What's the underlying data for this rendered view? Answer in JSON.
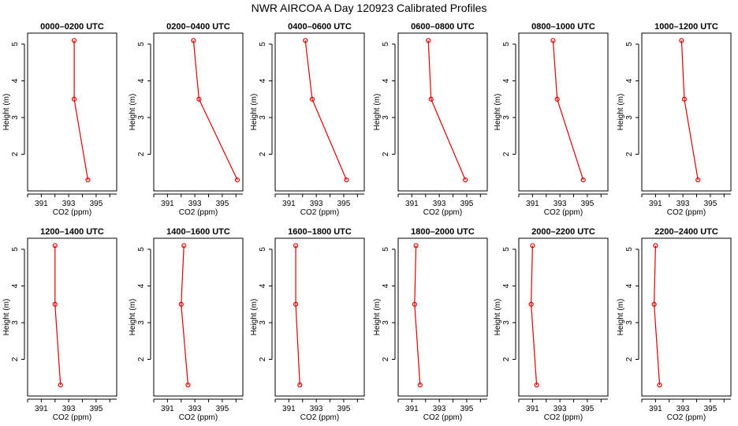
{
  "figure": {
    "title": "NWR AIRCOA A  Day 120923  Calibrated Profiles",
    "line_color": "#dd0000"
  },
  "chart_data": [
    {
      "type": "line",
      "title": "0000–0200 UTC",
      "xlabel": "CO2 (ppm)",
      "ylabel": "Height (m)",
      "xlim": [
        390,
        396.5
      ],
      "ylim": [
        1.0,
        5.3
      ],
      "xticks": [
        391,
        393,
        395
      ],
      "yticks": [
        2,
        3,
        4,
        5
      ],
      "x": [
        393.4,
        393.4,
        394.4
      ],
      "y": [
        5.1,
        3.5,
        1.3
      ]
    },
    {
      "type": "line",
      "title": "0200–0400 UTC",
      "xlabel": "CO2 (ppm)",
      "ylabel": "Height (m)",
      "xlim": [
        390,
        396.5
      ],
      "ylim": [
        1.0,
        5.3
      ],
      "xticks": [
        391,
        393,
        395
      ],
      "yticks": [
        2,
        3,
        4,
        5
      ],
      "x": [
        392.9,
        393.3,
        396.1
      ],
      "y": [
        5.1,
        3.5,
        1.3
      ]
    },
    {
      "type": "line",
      "title": "0400–0600 UTC",
      "xlabel": "CO2 (ppm)",
      "ylabel": "Height (m)",
      "xlim": [
        390,
        396.5
      ],
      "ylim": [
        1.0,
        5.3
      ],
      "xticks": [
        391,
        393,
        395
      ],
      "yticks": [
        2,
        3,
        4,
        5
      ],
      "x": [
        392.2,
        392.7,
        395.2
      ],
      "y": [
        5.1,
        3.5,
        1.3
      ]
    },
    {
      "type": "line",
      "title": "0600–0800 UTC",
      "xlabel": "CO2 (ppm)",
      "ylabel": "Height (m)",
      "xlim": [
        390,
        396.5
      ],
      "ylim": [
        1.0,
        5.3
      ],
      "xticks": [
        391,
        393,
        395
      ],
      "yticks": [
        2,
        3,
        4,
        5
      ],
      "x": [
        392.2,
        392.4,
        394.9
      ],
      "y": [
        5.1,
        3.5,
        1.3
      ]
    },
    {
      "type": "line",
      "title": "0800–1000 UTC",
      "xlabel": "CO2 (ppm)",
      "ylabel": "Height (m)",
      "xlim": [
        390,
        396.5
      ],
      "ylim": [
        1.0,
        5.3
      ],
      "xticks": [
        391,
        393,
        395
      ],
      "yticks": [
        2,
        3,
        4,
        5
      ],
      "x": [
        392.5,
        392.8,
        394.7
      ],
      "y": [
        5.1,
        3.5,
        1.3
      ]
    },
    {
      "type": "line",
      "title": "1000–1200 UTC",
      "xlabel": "CO2 (ppm)",
      "ylabel": "Height (m)",
      "xlim": [
        390,
        396.5
      ],
      "ylim": [
        1.0,
        5.3
      ],
      "xticks": [
        391,
        393,
        395
      ],
      "yticks": [
        2,
        3,
        4,
        5
      ],
      "x": [
        392.9,
        393.1,
        394.1
      ],
      "y": [
        5.1,
        3.5,
        1.3
      ]
    },
    {
      "type": "line",
      "title": "1200–1400 UTC",
      "xlabel": "CO2 (ppm)",
      "ylabel": "Height (m)",
      "xlim": [
        390,
        396.5
      ],
      "ylim": [
        1.0,
        5.3
      ],
      "xticks": [
        391,
        393,
        395
      ],
      "yticks": [
        2,
        3,
        4,
        5
      ],
      "x": [
        392.0,
        392.0,
        392.4
      ],
      "y": [
        5.1,
        3.5,
        1.3
      ]
    },
    {
      "type": "line",
      "title": "1400–1600 UTC",
      "xlabel": "CO2 (ppm)",
      "ylabel": "Height (m)",
      "xlim": [
        390,
        396.5
      ],
      "ylim": [
        1.0,
        5.3
      ],
      "xticks": [
        391,
        393,
        395
      ],
      "yticks": [
        2,
        3,
        4,
        5
      ],
      "x": [
        392.2,
        392.0,
        392.5
      ],
      "y": [
        5.1,
        3.5,
        1.3
      ]
    },
    {
      "type": "line",
      "title": "1600–1800 UTC",
      "xlabel": "CO2 (ppm)",
      "ylabel": "Height (m)",
      "xlim": [
        390,
        396.5
      ],
      "ylim": [
        1.0,
        5.3
      ],
      "xticks": [
        391,
        393,
        395
      ],
      "yticks": [
        2,
        3,
        4,
        5
      ],
      "x": [
        391.5,
        391.5,
        391.8
      ],
      "y": [
        5.1,
        3.5,
        1.3
      ]
    },
    {
      "type": "line",
      "title": "1800–2000 UTC",
      "xlabel": "CO2 (ppm)",
      "ylabel": "Height (m)",
      "xlim": [
        390,
        396.5
      ],
      "ylim": [
        1.0,
        5.3
      ],
      "xticks": [
        391,
        393,
        395
      ],
      "yticks": [
        2,
        3,
        4,
        5
      ],
      "x": [
        391.3,
        391.2,
        391.6
      ],
      "y": [
        5.1,
        3.5,
        1.3
      ]
    },
    {
      "type": "line",
      "title": "2000–2200 UTC",
      "xlabel": "CO2 (ppm)",
      "ylabel": "Height (m)",
      "xlim": [
        390,
        396.5
      ],
      "ylim": [
        1.0,
        5.3
      ],
      "xticks": [
        391,
        393,
        395
      ],
      "yticks": [
        2,
        3,
        4,
        5
      ],
      "x": [
        391.0,
        390.9,
        391.3
      ],
      "y": [
        5.1,
        3.5,
        1.3
      ]
    },
    {
      "type": "line",
      "title": "2200–2400 UTC",
      "xlabel": "CO2 (ppm)",
      "ylabel": "Height (m)",
      "xlim": [
        390,
        396.5
      ],
      "ylim": [
        1.0,
        5.3
      ],
      "xticks": [
        391,
        393,
        395
      ],
      "yticks": [
        2,
        3,
        4,
        5
      ],
      "x": [
        391.0,
        390.9,
        391.3
      ],
      "y": [
        5.1,
        3.5,
        1.3
      ]
    }
  ]
}
